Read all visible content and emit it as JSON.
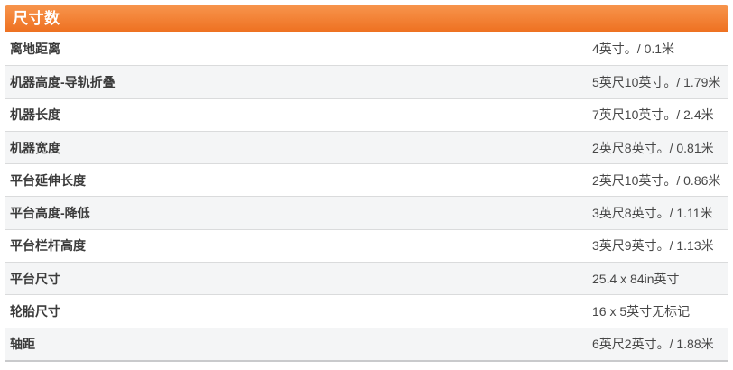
{
  "section": {
    "title": "尺寸数"
  },
  "colors": {
    "header_gradient_top": "#f7944c",
    "header_gradient_bottom": "#ee7020",
    "header_text": "#ffffff",
    "alt_row_bg": "#f4f5f6",
    "row_divider": "#dadbdc",
    "table_bottom_border": "#c9cacc",
    "label_text": "#3b3b3b",
    "value_text": "#474747"
  },
  "table": {
    "rows": [
      {
        "label": "离地距离",
        "value": "4英寸。/ 0.1米"
      },
      {
        "label": "机器高度-导轨折叠",
        "value": "5英尺10英寸。/ 1.79米"
      },
      {
        "label": "机器长度",
        "value": "7英尺10英寸。/ 2.4米"
      },
      {
        "label": "机器宽度",
        "value": "2英尺8英寸。/ 0.81米"
      },
      {
        "label": "平台延伸长度",
        "value": "2英尺10英寸。/ 0.86米"
      },
      {
        "label": "平台高度-降低",
        "value": "3英尺8英寸。/ 1.11米"
      },
      {
        "label": "平台栏杆高度",
        "value": "3英尺9英寸。/ 1.13米"
      },
      {
        "label": "平台尺寸",
        "value": "25.4 x 84in英寸"
      },
      {
        "label": "轮胎尺寸",
        "value": "16 x 5英寸无标记"
      },
      {
        "label": "轴距",
        "value": "6英尺2英寸。/ 1.88米"
      }
    ]
  }
}
